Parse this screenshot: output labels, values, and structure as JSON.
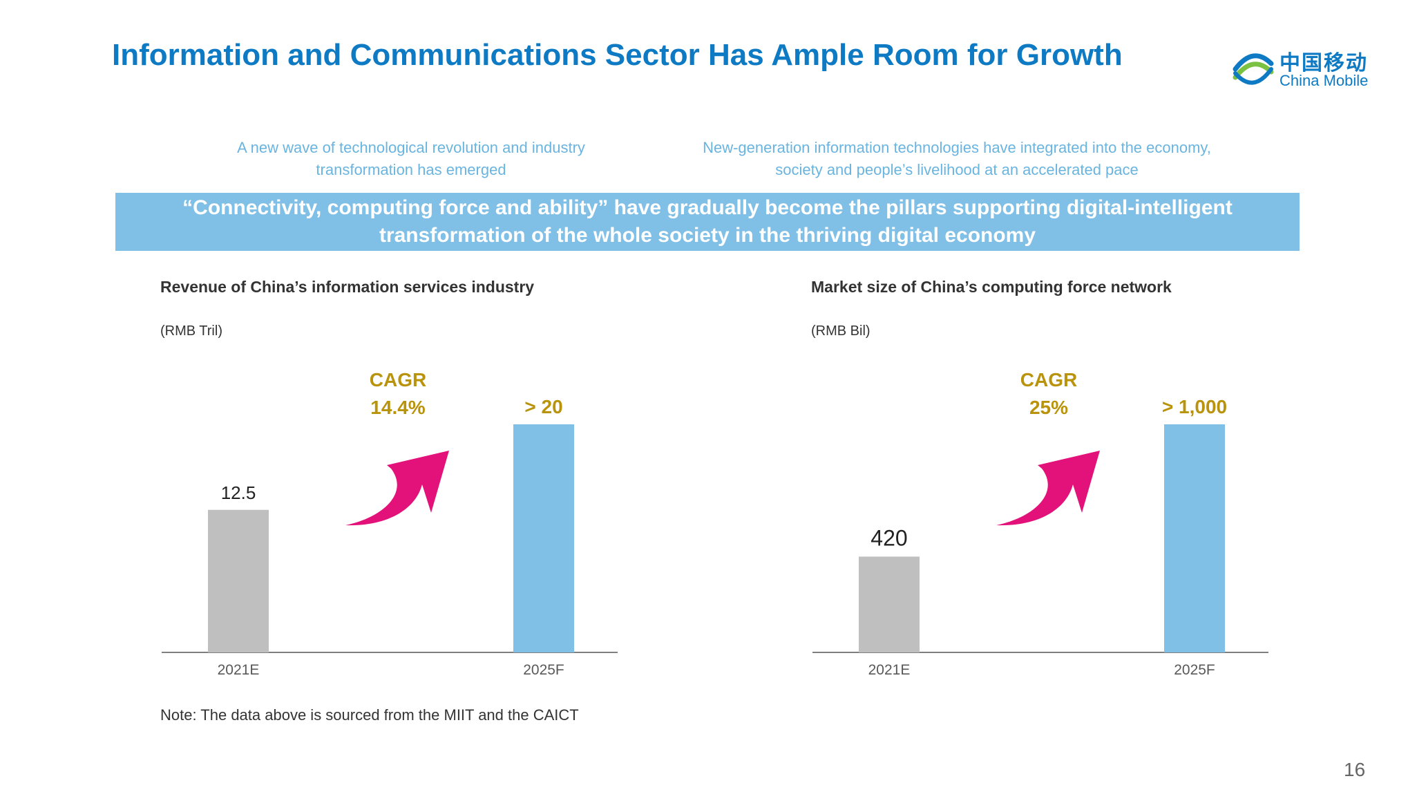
{
  "title": "Information and Communications Sector Has Ample Room for Growth",
  "logo": {
    "cn": "中国移动",
    "en": "China Mobile",
    "icon": "china-mobile-logo-icon"
  },
  "subtitles": [
    "A new wave of technological revolution and industry transformation has emerged",
    "New-generation information technologies have integrated into the economy, society and people’s livelihood at an accelerated pace"
  ],
  "banner": "“Connectivity, computing force and ability” have gradually become the pillars supporting digital-intelligent transformation of the whole society in the thriving digital economy",
  "colors": {
    "accent": "#0e7ac4",
    "banner": "#80bfe6",
    "bar_2021": "#bfbfbf",
    "bar_2025": "#80bfe6",
    "cagr": "#b8930b",
    "arrow": "#e3127a"
  },
  "chart_data": [
    {
      "type": "bar",
      "title": "Revenue of China’s information services industry",
      "unit": "(RMB Tril)",
      "categories": [
        "2021E",
        "2025F"
      ],
      "values": [
        12.5,
        20
      ],
      "value_labels": [
        "12.5",
        "> 20"
      ],
      "cagr_label": "CAGR",
      "cagr_value": "14.4%",
      "ylim": [
        0,
        24
      ]
    },
    {
      "type": "bar",
      "title": "Market size of China’s computing force network",
      "unit": "(RMB Bil)",
      "categories": [
        "2021E",
        "2025F"
      ],
      "values": [
        420,
        1000
      ],
      "value_labels": [
        "420",
        "> 1,000"
      ],
      "cagr_label": "CAGR",
      "cagr_value": "25%",
      "ylim": [
        0,
        1200
      ]
    }
  ],
  "note": "Note: The data above is sourced from the MIIT and the CAICT",
  "page_number": "16"
}
